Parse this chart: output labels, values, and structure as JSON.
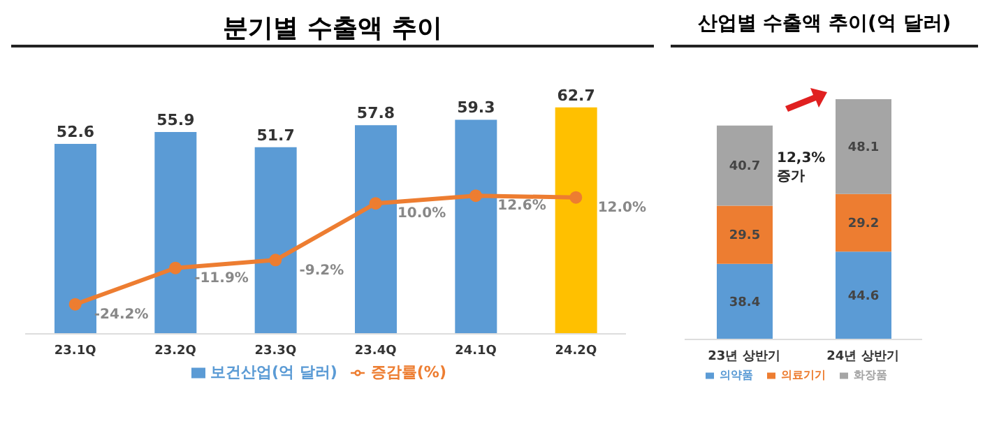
{
  "chart_data": [
    {
      "type": "bar",
      "title": "분기별 수출액 추이",
      "categories": [
        "23.1Q",
        "23.2Q",
        "23.3Q",
        "23.4Q",
        "24.1Q",
        "24.2Q"
      ],
      "data_labels": true,
      "legend": "bottom",
      "series": [
        {
          "name": "보건산업(억 달러)",
          "color": "#5b9bd5",
          "colors": [
            "#5b9bd5",
            "#5b9bd5",
            "#5b9bd5",
            "#5b9bd5",
            "#5b9bd5",
            "#ffc000"
          ],
          "values": [
            52.6,
            55.9,
            51.7,
            57.8,
            59.3,
            62.7
          ]
        },
        {
          "name": "증감률(%)",
          "type": "line",
          "axis": "y2",
          "color": "#ed7d31",
          "marker": "circle",
          "values": [
            -24.2,
            -11.9,
            -9.2,
            10.0,
            12.6,
            12.0
          ],
          "value_labels": [
            "-24.2%",
            "-11.9%",
            "-9.2%",
            "10.0%",
            "12.6%",
            "12.0%"
          ]
        }
      ]
    },
    {
      "type": "bar",
      "title": "산업별 수출액 추이(억 달러)",
      "categories": [
        "23년 상반기",
        "24년 상반기"
      ],
      "stacked": true,
      "data_labels": true,
      "legend": "bottom",
      "annotations": [
        "12,3% 증가"
      ],
      "series": [
        {
          "name": "의약품",
          "color": "#5b9bd5",
          "values": [
            38.4,
            44.6
          ]
        },
        {
          "name": "의료기기",
          "color": "#ed7d31",
          "values": [
            29.5,
            29.2
          ]
        },
        {
          "name": "화장품",
          "color": "#a5a5a5",
          "values": [
            40.7,
            48.1
          ]
        }
      ]
    }
  ]
}
